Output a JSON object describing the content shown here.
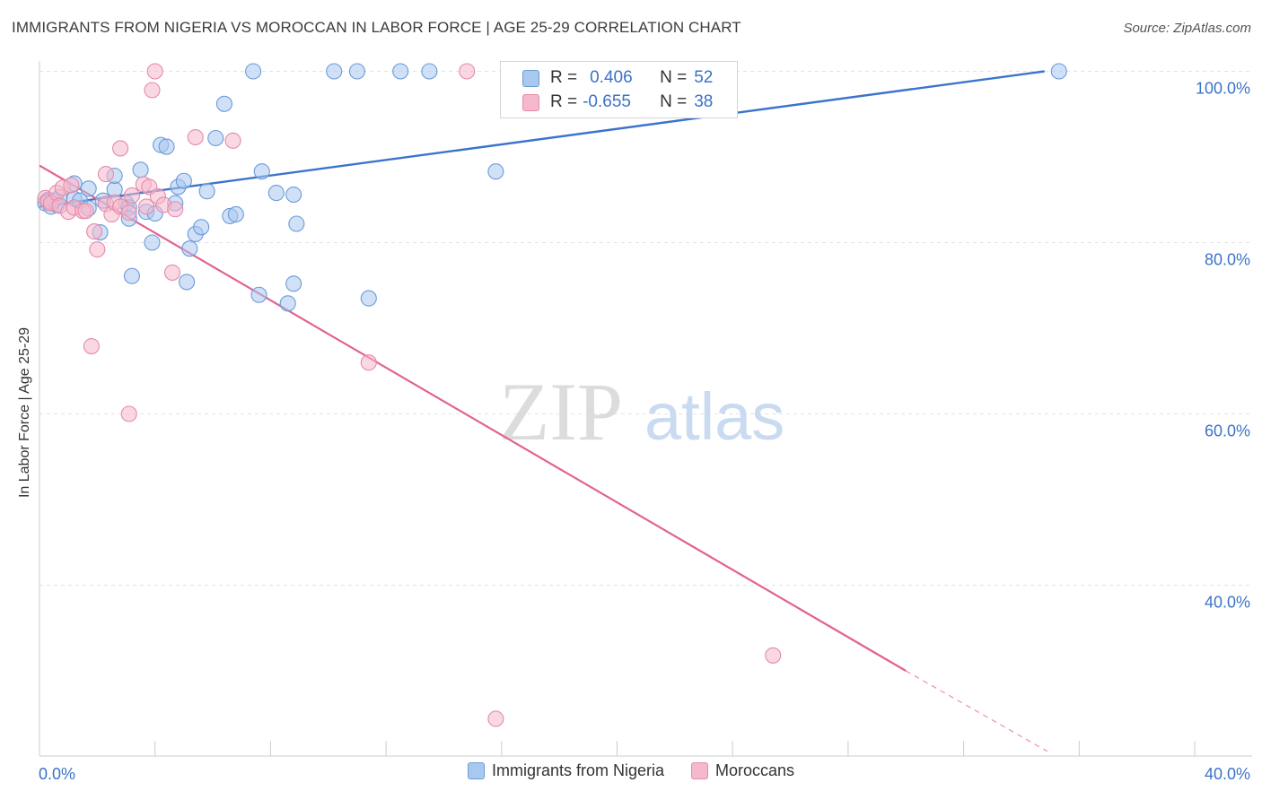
{
  "title": "IMMIGRANTS FROM NIGERIA VS MOROCCAN IN LABOR FORCE | AGE 25-29 CORRELATION CHART",
  "source": "Source: ZipAtlas.com",
  "watermark": {
    "zip": "ZIP",
    "atlas": "atlas"
  },
  "colors": {
    "blue_fill": "#a9c8f0",
    "blue_stroke": "#6b9bd8",
    "blue_line": "#3a74cc",
    "pink_fill": "#f6b8cc",
    "pink_stroke": "#e58aa8",
    "pink_line": "#e2628f",
    "axis_text": "#3b73c6",
    "grid": "#e3e3e3"
  },
  "stats": {
    "r_label": "R =",
    "n_label": "N =",
    "nigeria": {
      "r": "0.406",
      "n": "52"
    },
    "moroccans": {
      "r": "-0.655",
      "n": "38"
    }
  },
  "legend": {
    "nigeria": "Immigrants from Nigeria",
    "moroccans": "Moroccans"
  },
  "chart_data": {
    "type": "scatter",
    "title": "IMMIGRANTS FROM NIGERIA VS MOROCCAN IN LABOR FORCE | AGE 25-29 CORRELATION CHART",
    "xlabel": "",
    "ylabel": "In Labor Force | Age 25-29",
    "xlim": [
      0,
      40
    ],
    "ylim": [
      20,
      102
    ],
    "x_tick_labels": [
      "0.0%",
      "40.0%"
    ],
    "y_ticks": [
      40,
      60,
      80,
      100
    ],
    "y_tick_labels": [
      "40.0%",
      "60.0%",
      "80.0%",
      "100.0%"
    ],
    "grid": true,
    "legend_position": "bottom",
    "series": [
      {
        "name": "Immigrants from Nigeria",
        "color": "#a9c8f0",
        "trend": {
          "x": [
            0,
            34.8
          ],
          "y": [
            84.2,
            100.0
          ]
        },
        "points": [
          [
            0.2,
            84.6
          ],
          [
            0.3,
            85.0
          ],
          [
            0.4,
            84.2
          ],
          [
            0.5,
            84.9
          ],
          [
            0.6,
            84.4
          ],
          [
            0.7,
            85.3
          ],
          [
            1.2,
            85.1
          ],
          [
            1.2,
            86.9
          ],
          [
            1.4,
            84.9
          ],
          [
            1.7,
            84.0
          ],
          [
            1.7,
            86.3
          ],
          [
            2.1,
            81.2
          ],
          [
            2.2,
            84.9
          ],
          [
            2.6,
            86.2
          ],
          [
            2.6,
            87.8
          ],
          [
            3.0,
            84.6
          ],
          [
            3.1,
            84.1
          ],
          [
            3.1,
            82.8
          ],
          [
            3.2,
            76.1
          ],
          [
            3.5,
            88.5
          ],
          [
            3.7,
            83.6
          ],
          [
            3.9,
            80.0
          ],
          [
            4.0,
            83.4
          ],
          [
            4.2,
            91.4
          ],
          [
            4.4,
            91.2
          ],
          [
            4.7,
            84.6
          ],
          [
            4.8,
            86.5
          ],
          [
            5.0,
            87.2
          ],
          [
            5.1,
            75.4
          ],
          [
            5.2,
            79.3
          ],
          [
            5.4,
            81.0
          ],
          [
            5.6,
            81.8
          ],
          [
            5.8,
            86.0
          ],
          [
            6.1,
            92.2
          ],
          [
            6.4,
            96.2
          ],
          [
            6.6,
            83.1
          ],
          [
            6.8,
            83.3
          ],
          [
            7.4,
            100.0
          ],
          [
            7.6,
            73.9
          ],
          [
            7.7,
            88.3
          ],
          [
            8.2,
            85.8
          ],
          [
            8.6,
            72.9
          ],
          [
            8.8,
            75.2
          ],
          [
            8.8,
            85.6
          ],
          [
            8.9,
            82.2
          ],
          [
            10.2,
            100.0
          ],
          [
            11.0,
            100.0
          ],
          [
            11.4,
            73.5
          ],
          [
            12.5,
            100.0
          ],
          [
            13.5,
            100.0
          ],
          [
            15.8,
            88.3
          ],
          [
            35.3,
            100.0
          ]
        ]
      },
      {
        "name": "Moroccans",
        "color": "#f6b8cc",
        "trend": {
          "x": [
            0,
            30.0
          ],
          "y": [
            89.0,
            30.0
          ]
        },
        "trend_dashed": {
          "x": [
            30.0,
            34.9
          ],
          "y": [
            30.0,
            20.6
          ]
        },
        "points": [
          [
            0.2,
            85.2
          ],
          [
            0.3,
            84.8
          ],
          [
            0.4,
            84.6
          ],
          [
            0.6,
            85.8
          ],
          [
            0.7,
            84.3
          ],
          [
            0.8,
            86.4
          ],
          [
            1.0,
            83.6
          ],
          [
            1.1,
            86.7
          ],
          [
            1.2,
            84.1
          ],
          [
            1.5,
            83.7
          ],
          [
            1.6,
            83.7
          ],
          [
            1.9,
            81.3
          ],
          [
            2.0,
            79.2
          ],
          [
            2.3,
            84.5
          ],
          [
            2.3,
            88.0
          ],
          [
            2.5,
            83.3
          ],
          [
            2.6,
            84.7
          ],
          [
            2.8,
            84.2
          ],
          [
            2.8,
            91.0
          ],
          [
            3.1,
            83.5
          ],
          [
            3.1,
            60.0
          ],
          [
            3.2,
            85.5
          ],
          [
            3.6,
            86.8
          ],
          [
            3.7,
            84.2
          ],
          [
            3.8,
            86.5
          ],
          [
            3.9,
            97.8
          ],
          [
            4.0,
            100.0
          ],
          [
            4.1,
            85.4
          ],
          [
            4.3,
            84.4
          ],
          [
            4.6,
            76.5
          ],
          [
            4.7,
            83.9
          ],
          [
            5.4,
            92.3
          ],
          [
            6.7,
            91.9
          ],
          [
            1.8,
            67.9
          ],
          [
            11.4,
            66.0
          ],
          [
            14.8,
            100.0
          ],
          [
            15.8,
            24.4
          ],
          [
            25.4,
            31.8
          ]
        ]
      }
    ]
  }
}
